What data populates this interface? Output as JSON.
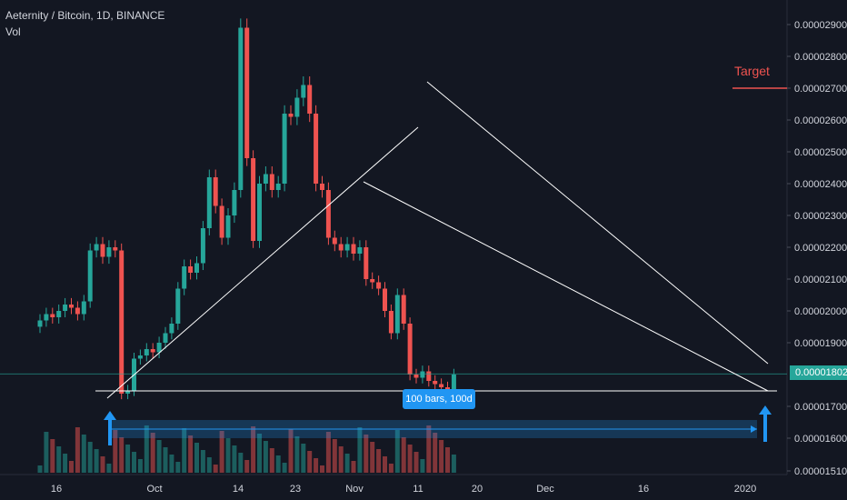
{
  "header": {
    "symbol_line": "Aeternity / Bitcoin, 1D, BINANCE",
    "volume_label": "Vol"
  },
  "annotations": {
    "target_label": "Target",
    "range_label": "100 bars, 100d",
    "last_price": "0.00001802"
  },
  "colors": {
    "background": "#131722",
    "up": "#26a69a",
    "down": "#ef5350",
    "accent": "#2196f3",
    "grid": "#1f2433"
  },
  "chart_data": {
    "type": "candlestick",
    "title": "Aeternity / Bitcoin, 1D, BINANCE",
    "y_axis": {
      "ticks": [
        "0.00002900",
        "0.00002800",
        "0.00002700",
        "0.00002600",
        "0.00002500",
        "0.00002400",
        "0.00002300",
        "0.00002200",
        "0.00002100",
        "0.00002000",
        "0.00001900",
        "0.00001700",
        "0.00001600",
        "0.00001510"
      ],
      "ylim": [
        1.51e-05,
        2.93e-05
      ]
    },
    "x_axis": {
      "ticks": [
        "16",
        "Oct",
        "14",
        "23",
        "Nov",
        "11",
        "20",
        "Dec",
        "16",
        "2020"
      ]
    },
    "last_price": 1.802e-05,
    "target": 2.7e-05,
    "range_measure": "100 bars, 100d",
    "closes_approx": [
      1.97e-05,
      1.99e-05,
      1.98e-05,
      2e-05,
      2.02e-05,
      2.01e-05,
      1.99e-05,
      2.03e-05,
      2.19e-05,
      2.21e-05,
      2.17e-05,
      2.2e-05,
      2.19e-05,
      1.74e-05,
      1.75e-05,
      1.85e-05,
      1.86e-05,
      1.88e-05,
      1.87e-05,
      1.9e-05,
      1.93e-05,
      1.96e-05,
      2.07e-05,
      2.14e-05,
      2.12e-05,
      2.15e-05,
      2.26e-05,
      2.42e-05,
      2.33e-05,
      2.23e-05,
      2.3e-05,
      2.38e-05,
      2.89e-05,
      2.48e-05,
      2.22e-05,
      2.4e-05,
      2.43e-05,
      2.38e-05,
      2.4e-05,
      2.62e-05,
      2.61e-05,
      2.67e-05,
      2.71e-05,
      2.62e-05,
      2.4e-05,
      2.38e-05,
      2.23e-05,
      2.21e-05,
      2.19e-05,
      2.21e-05,
      2.18e-05,
      2.2e-05,
      2.1e-05,
      2.09e-05,
      2.07e-05,
      2e-05,
      1.93e-05,
      2.05e-05,
      1.96e-05,
      1.8e-05,
      1.79e-05,
      1.81e-05,
      1.78e-05,
      1.77e-05,
      1.76e-05,
      1.75e-05,
      1.8e-05
    ]
  }
}
